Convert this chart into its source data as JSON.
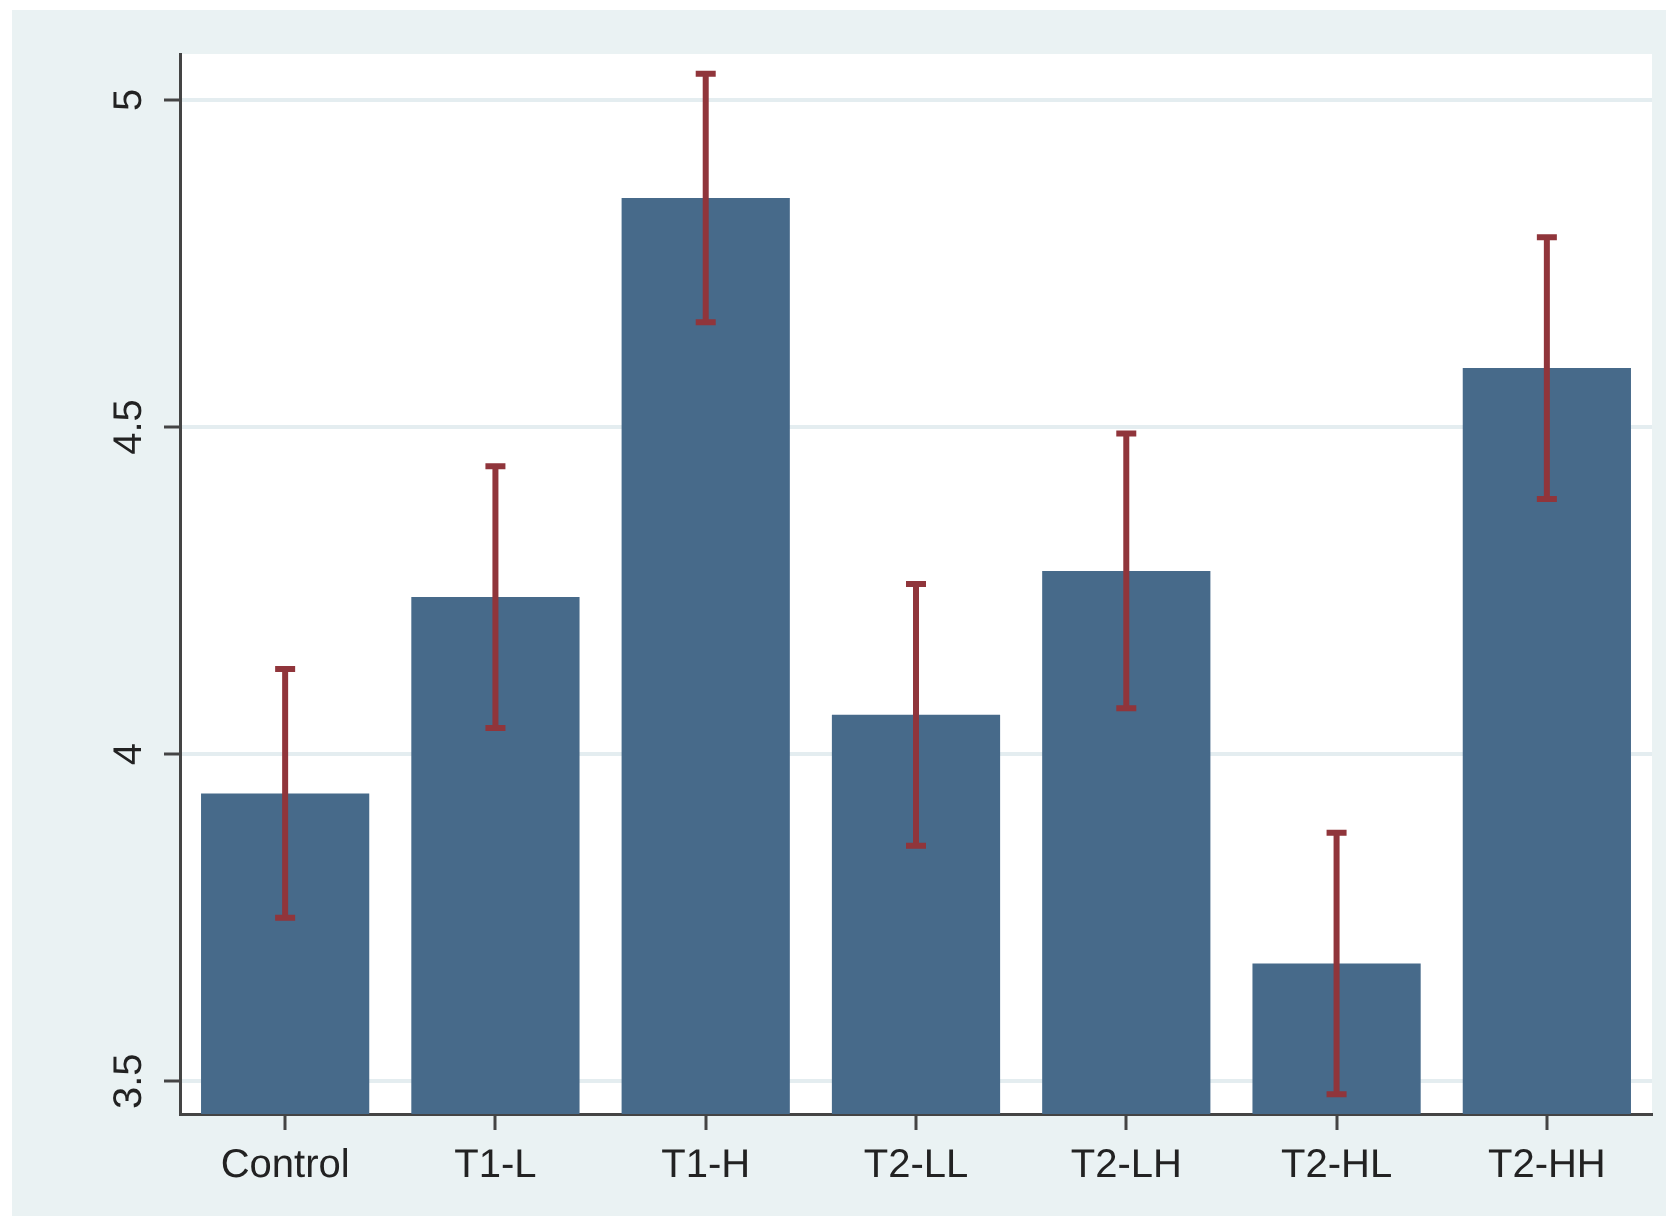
{
  "chart_data": {
    "type": "bar",
    "categories": [
      "Control",
      "T1-L",
      "T1-H",
      "T2-LL",
      "T2-LH",
      "T2-HL",
      "T2-HH"
    ],
    "values": [
      3.94,
      4.24,
      4.85,
      4.06,
      4.28,
      3.68,
      4.59
    ],
    "errors": [
      0.19,
      0.2,
      0.19,
      0.2,
      0.21,
      0.2,
      0.2
    ],
    "color": "#476a8a",
    "ylim": [
      3.45,
      5.07
    ],
    "yticks": [
      3.5,
      4,
      4.5,
      5
    ],
    "grid": "y"
  }
}
